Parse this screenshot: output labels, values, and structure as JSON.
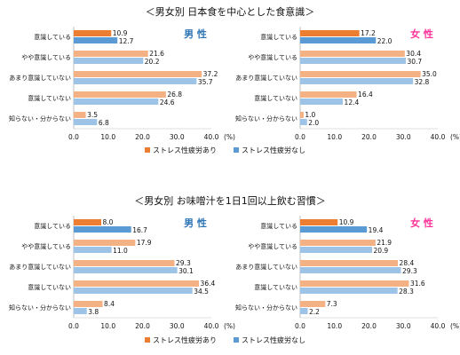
{
  "sections": [
    {
      "title": "＜男女別 日本食を中心とした食意識＞"
    },
    {
      "title": "＜男女別 お味噌汁を1日1回以上飲む習慣＞"
    }
  ],
  "legend": [
    {
      "name": "ストレス性疲労あり",
      "color": "#ED7D31"
    },
    {
      "name": "ストレス性疲労なし",
      "color": "#5B9BD5"
    }
  ],
  "genders": {
    "male": "男 性",
    "female": "女 性"
  },
  "colors": {
    "top_stress": "#ED7D31",
    "top_nostress": "#5B9BD5",
    "rest_stress": "#F4B183",
    "rest_nostress": "#9DC3E6",
    "male": "#2E75B6",
    "female": "#FF3399",
    "axis": "#BFBFBF"
  },
  "chart_data": [
    {
      "type": "bar",
      "orientation": "horizontal",
      "gender": "男 性",
      "categories": [
        "意識している",
        "やや意識している",
        "あまり意識していない",
        "意識していない",
        "知らない・分からない"
      ],
      "series": [
        {
          "name": "ストレス性疲労あり",
          "values": [
            10.9,
            21.6,
            37.2,
            26.8,
            3.5
          ]
        },
        {
          "name": "ストレス性疲労なし",
          "values": [
            12.7,
            20.2,
            35.7,
            24.6,
            6.8
          ]
        }
      ],
      "xlim": [
        0,
        40
      ],
      "xticks": [
        "0.0",
        "10.0",
        "20.0",
        "30.0",
        "40.0"
      ],
      "x_unit": "(%)"
    },
    {
      "type": "bar",
      "orientation": "horizontal",
      "gender": "女 性",
      "categories": [
        "意識している",
        "やや意識している",
        "あまり意識していない",
        "意識していない",
        "知らない・分からない"
      ],
      "series": [
        {
          "name": "ストレス性疲労あり",
          "values": [
            17.2,
            30.4,
            35.0,
            16.4,
            1.0
          ]
        },
        {
          "name": "ストレス性疲労なし",
          "values": [
            22.0,
            30.7,
            32.8,
            12.4,
            2.0
          ]
        }
      ],
      "xlim": [
        0,
        40
      ],
      "xticks": [
        "0.0",
        "10.0",
        "20.0",
        "30.0",
        "40.0"
      ],
      "x_unit": "(%)"
    },
    {
      "type": "bar",
      "orientation": "horizontal",
      "gender": "男 性",
      "categories": [
        "意識している",
        "やや意識している",
        "あまり意識していない",
        "意識していない",
        "知らない・分からない"
      ],
      "series": [
        {
          "name": "ストレス性疲労あり",
          "values": [
            8.0,
            17.9,
            29.3,
            36.4,
            8.4
          ]
        },
        {
          "name": "ストレス性疲労なし",
          "values": [
            16.7,
            11.0,
            30.1,
            34.5,
            3.8
          ]
        }
      ],
      "xlim": [
        0,
        40
      ],
      "xticks": [
        "0.0",
        "10.0",
        "20.0",
        "30.0",
        "40.0"
      ],
      "x_unit": "(%)"
    },
    {
      "type": "bar",
      "orientation": "horizontal",
      "gender": "女 性",
      "categories": [
        "意識している",
        "やや意識している",
        "あまり意識していない",
        "意識していない",
        "知らない・分からない"
      ],
      "series": [
        {
          "name": "ストレス性疲労あり",
          "values": [
            10.9,
            21.9,
            28.4,
            31.6,
            7.3
          ]
        },
        {
          "name": "ストレス性疲労なし",
          "values": [
            19.4,
            20.9,
            29.3,
            28.3,
            2.2
          ]
        }
      ],
      "xlim": [
        0,
        40
      ],
      "xticks": [
        "0.0",
        "10.0",
        "20.0",
        "30.0",
        "40.0"
      ],
      "x_unit": "(%)"
    }
  ]
}
